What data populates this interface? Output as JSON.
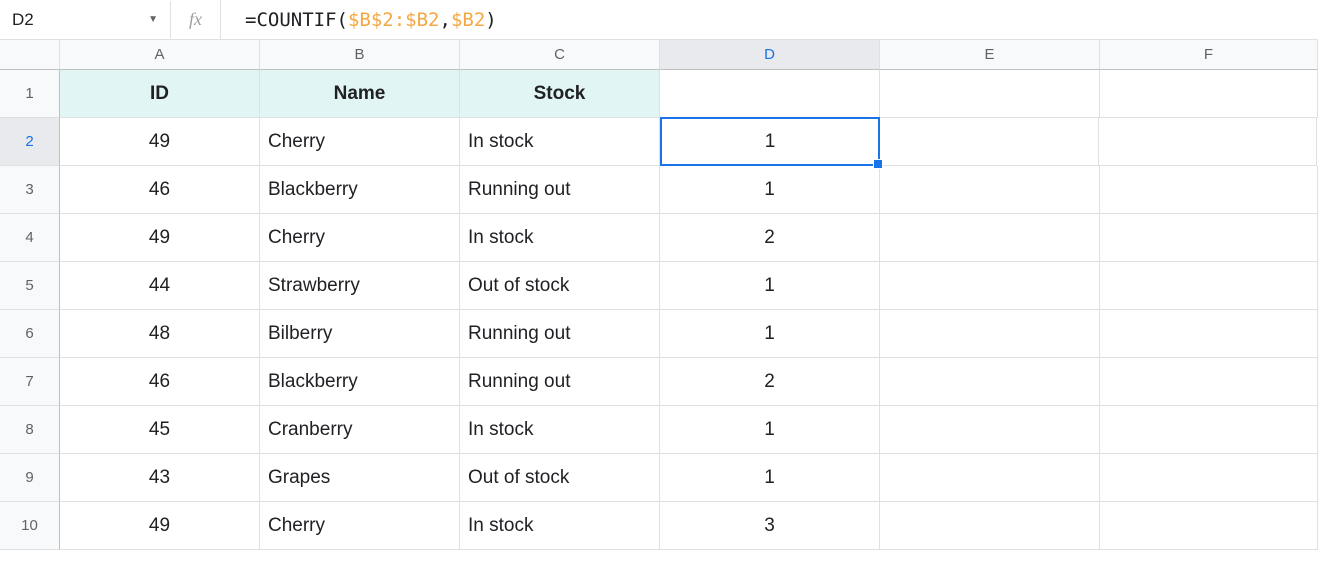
{
  "nameBox": "D2",
  "formula": {
    "prefix": "=COUNTIF",
    "open": "(",
    "ref1": "$B$2:$B2",
    "comma": ",",
    "ref2": "$B2",
    "close": ")"
  },
  "columns": [
    "A",
    "B",
    "C",
    "D",
    "E",
    "F"
  ],
  "selectedCol": "D",
  "selectedRow": "2",
  "headers": {
    "A": "ID",
    "B": "Name",
    "C": "Stock"
  },
  "rows": [
    {
      "num": "1",
      "A": "ID",
      "B": "Name",
      "C": "Stock",
      "D": "",
      "E": "",
      "F": "",
      "isHeader": true
    },
    {
      "num": "2",
      "A": "49",
      "B": "Cherry",
      "C": "In stock",
      "D": "1",
      "E": "",
      "F": ""
    },
    {
      "num": "3",
      "A": "46",
      "B": "Blackberry",
      "C": "Running out",
      "D": "1",
      "E": "",
      "F": ""
    },
    {
      "num": "4",
      "A": "49",
      "B": "Cherry",
      "C": "In stock",
      "D": "2",
      "E": "",
      "F": ""
    },
    {
      "num": "5",
      "A": "44",
      "B": "Strawberry",
      "C": "Out of stock",
      "D": "1",
      "E": "",
      "F": ""
    },
    {
      "num": "6",
      "A": "48",
      "B": "Bilberry",
      "C": "Running out",
      "D": "1",
      "E": "",
      "F": ""
    },
    {
      "num": "7",
      "A": "46",
      "B": "Blackberry",
      "C": "Running out",
      "D": "2",
      "E": "",
      "F": ""
    },
    {
      "num": "8",
      "A": "45",
      "B": "Cranberry",
      "C": "In stock",
      "D": "1",
      "E": "",
      "F": ""
    },
    {
      "num": "9",
      "A": "43",
      "B": "Grapes",
      "C": "Out of stock",
      "D": "1",
      "E": "",
      "F": ""
    },
    {
      "num": "10",
      "A": "49",
      "B": "Cherry",
      "C": "In stock",
      "D": "3",
      "E": "",
      "F": ""
    }
  ],
  "colors": {
    "headerBg": "#e1f5f5",
    "gridLine": "#e0e0e0",
    "selectionBorder": "#1a73e8",
    "colRowHeaderBg": "#f8f9fa",
    "refColor": "#f4a742"
  }
}
